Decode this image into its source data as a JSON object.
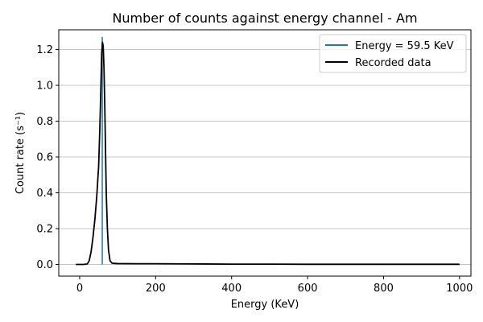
{
  "chart_data": {
    "type": "line",
    "title": "Number of counts against energy channel - Am",
    "xlabel": "Energy (KeV)",
    "ylabel": "Count rate (s⁻¹)",
    "xlim": [
      -55,
      1030
    ],
    "ylim": [
      -0.065,
      1.31
    ],
    "xticks": [
      0,
      200,
      400,
      600,
      800,
      1000
    ],
    "yticks": [
      0.0,
      0.2,
      0.4,
      0.6,
      0.8,
      1.0,
      1.2
    ],
    "xtick_labels": [
      "0",
      "200",
      "400",
      "600",
      "800",
      "1000"
    ],
    "ytick_labels": [
      "0.0",
      "0.2",
      "0.4",
      "0.6",
      "0.8",
      "1.0",
      "1.2"
    ],
    "grid": "horizontal",
    "legend_position": "top-right",
    "vline": {
      "name": "Energy = 59.5 KeV",
      "x": 59.5,
      "y_range": [
        0,
        1.27
      ],
      "color": "#1f77b4"
    },
    "series": [
      {
        "name": "Recorded data",
        "color": "#000000",
        "x": [
          -10,
          10,
          20,
          25,
          30,
          35,
          40,
          45,
          50,
          53,
          56,
          58,
          60,
          62,
          64,
          66,
          68,
          70,
          73,
          76,
          80,
          85,
          90,
          100,
          150,
          200,
          300,
          400,
          500,
          600,
          700,
          800,
          900,
          1000
        ],
        "y": [
          0,
          0.0,
          0.003,
          0.02,
          0.07,
          0.15,
          0.25,
          0.38,
          0.55,
          0.75,
          1.0,
          1.18,
          1.24,
          1.22,
          1.1,
          0.9,
          0.65,
          0.4,
          0.2,
          0.08,
          0.02,
          0.008,
          0.006,
          0.005,
          0.004,
          0.004,
          0.003,
          0.002,
          0.002,
          0.001,
          0.001,
          0.001,
          0.001,
          0.001
        ]
      }
    ]
  }
}
